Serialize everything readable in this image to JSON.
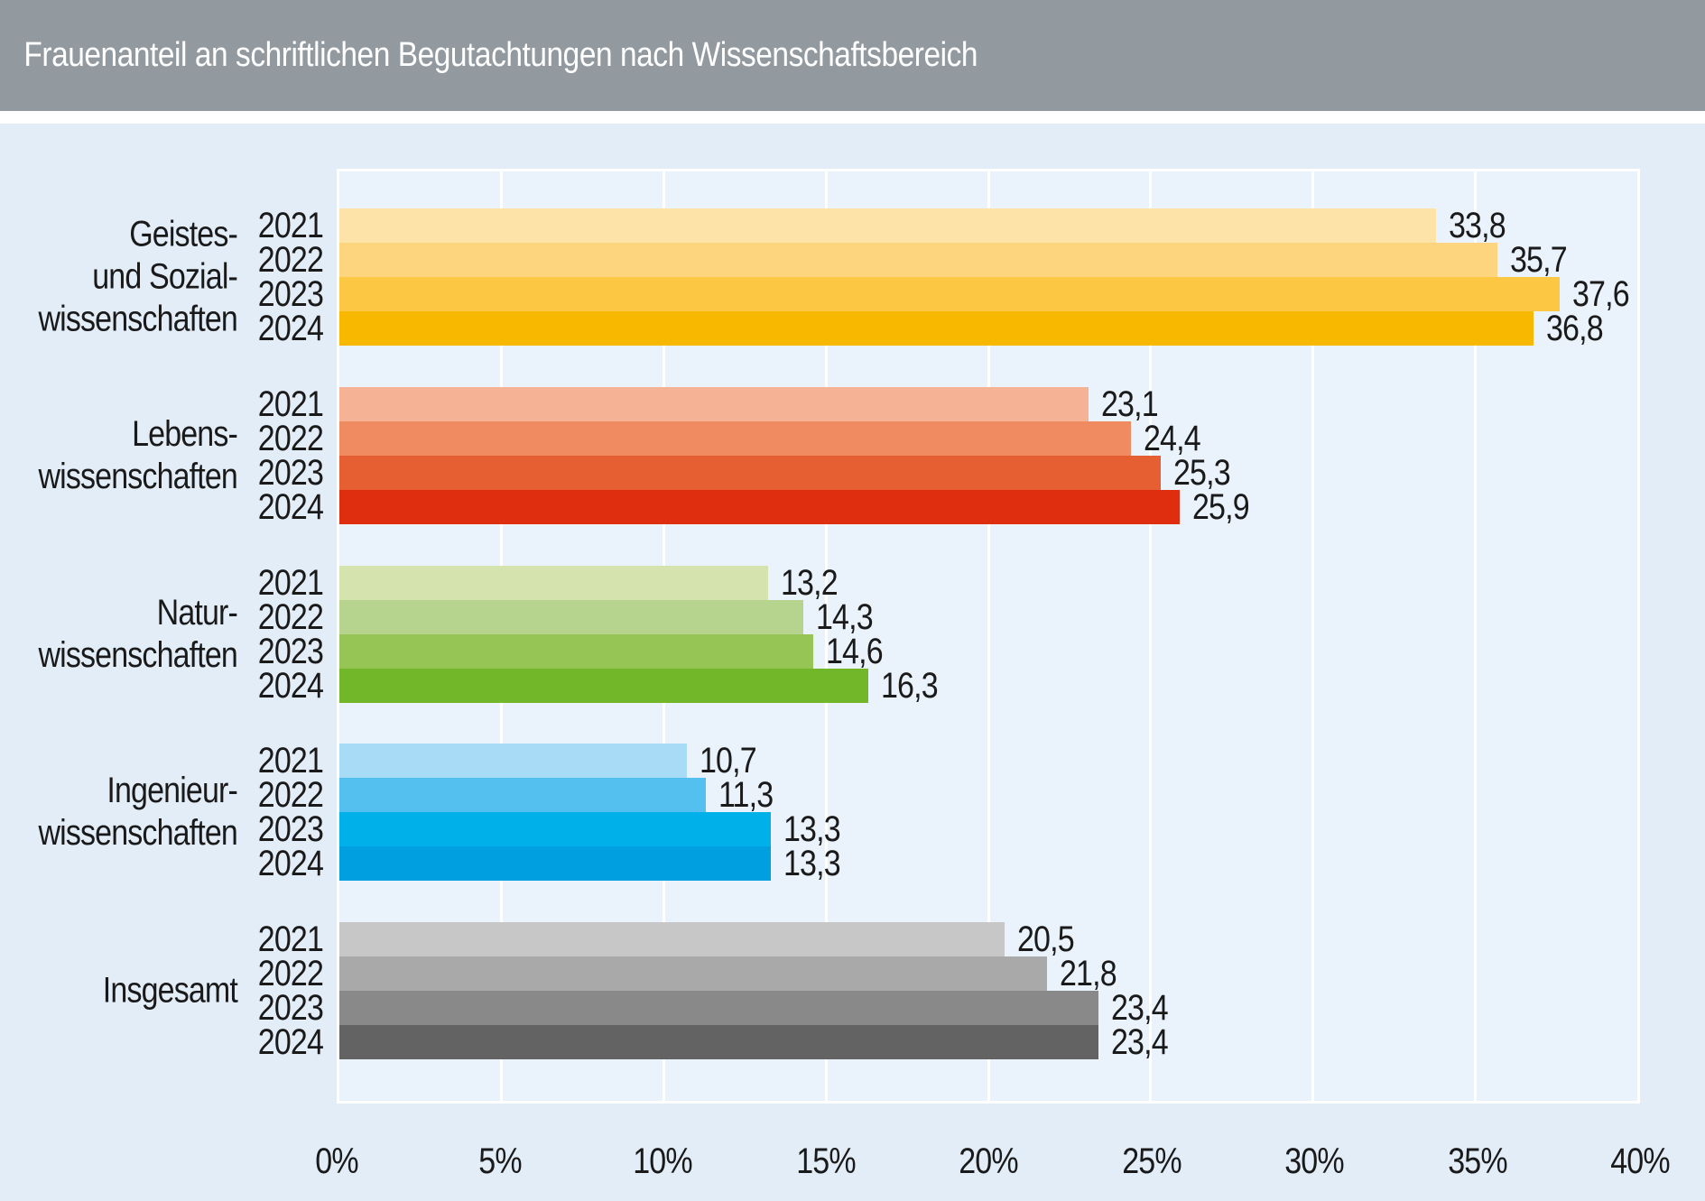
{
  "header": {
    "title": "Frauenanteil an schriftlichen Begutachtungen nach Wissenschaftsbereich",
    "background": "#929aa0",
    "text_color": "#ffffff"
  },
  "chart_data": {
    "type": "bar",
    "orientation": "horizontal",
    "title": "Frauenanteil an schriftlichen Begutachtungen nach Wissenschaftsbereich",
    "xlabel": "",
    "ylabel": "",
    "xlim": [
      0,
      40
    ],
    "x_tick_labels": [
      "0%",
      "5%",
      "10%",
      "15%",
      "20%",
      "25%",
      "30%",
      "35%",
      "40%"
    ],
    "grid": "vertical-white-lines-every-5-percent",
    "legend": "none",
    "years_per_group": [
      "2021",
      "2022",
      "2023",
      "2024"
    ],
    "groups": [
      {
        "category": "Geistes- und Sozialwissenschaften",
        "label_lines": [
          "Geistes-",
          "und Sozial-",
          "wissenschaften"
        ],
        "values": [
          33.8,
          35.7,
          37.6,
          36.8
        ],
        "value_labels": [
          "33,8",
          "35,7",
          "37,6",
          "36,8"
        ],
        "colors": [
          "#fde3a7",
          "#fdd57e",
          "#fcc743",
          "#f9b800"
        ]
      },
      {
        "category": "Lebenswissenschaften",
        "label_lines": [
          "Lebens-",
          "wissenschaften"
        ],
        "values": [
          23.1,
          24.4,
          25.3,
          25.9
        ],
        "value_labels": [
          "23,1",
          "24,4",
          "25,3",
          "25,9"
        ],
        "colors": [
          "#f6b295",
          "#f08a61",
          "#e55f33",
          "#de2d0f"
        ]
      },
      {
        "category": "Naturwissenschaften",
        "label_lines": [
          "Natur-",
          "wissenschaften"
        ],
        "values": [
          13.2,
          14.3,
          14.6,
          16.3
        ],
        "value_labels": [
          "13,2",
          "14,3",
          "14,6",
          "16,3"
        ],
        "colors": [
          "#d5e3af",
          "#b7d48e",
          "#96c455",
          "#72b62a"
        ]
      },
      {
        "category": "Ingenieurwissenschaften",
        "label_lines": [
          "Ingenieur-",
          "wissenschaften"
        ],
        "values": [
          10.7,
          11.3,
          13.3,
          13.3
        ],
        "value_labels": [
          "10,7",
          "11,3",
          "13,3",
          "13,3"
        ],
        "colors": [
          "#a8dbf5",
          "#54c0ef",
          "#00b1e9",
          "#009fdf"
        ]
      },
      {
        "category": "Insgesamt",
        "label_lines": [
          "Insgesamt"
        ],
        "values": [
          20.5,
          21.8,
          23.4,
          23.4
        ],
        "value_labels": [
          "20,5",
          "21,8",
          "23,4",
          "23,4"
        ],
        "colors": [
          "#c7c7c7",
          "#a9a9a9",
          "#898989",
          "#636363"
        ]
      }
    ],
    "colors": {
      "page_background": "#e3edf8",
      "plot_background": "#eaf2fb",
      "gridline": "#ffffff",
      "label_text": "#1a1a1a"
    }
  }
}
